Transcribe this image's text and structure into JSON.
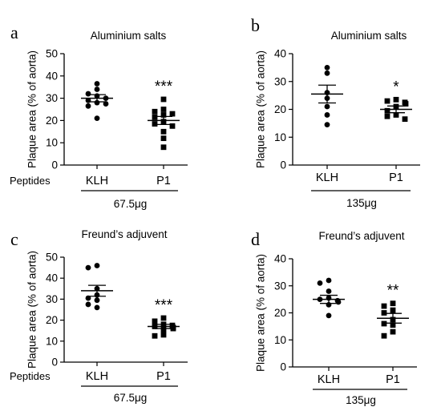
{
  "chart_data": [
    {
      "type": "scatter",
      "panel_label": "a",
      "title": "Aluminium salts",
      "ylabel": "Plaque area (% of aorta)",
      "ylim": [
        0,
        50
      ],
      "yticks": [
        "0",
        "10",
        "20",
        "30",
        "40",
        "50"
      ],
      "categories": [
        "KLH",
        "P1"
      ],
      "row_label": "Peptides",
      "dose": "67.5μg",
      "significance": "***",
      "series": [
        {
          "marker": "circle",
          "mean": 30,
          "sem": 1.6,
          "values": [
            36.5,
            34,
            32,
            31,
            30,
            29,
            28,
            27.5,
            26.5,
            21
          ]
        },
        {
          "marker": "square",
          "mean": 20,
          "sem": 1.8,
          "values": [
            29.5,
            25,
            24,
            23,
            22.5,
            21.5,
            19.5,
            18.5,
            17.5,
            15,
            12,
            8
          ]
        }
      ]
    },
    {
      "type": "scatter",
      "panel_label": "b",
      "title": "Aluminium salts",
      "ylabel": "Plaque area (% of aorta)",
      "ylim": [
        0,
        40
      ],
      "yticks": [
        "0",
        "10",
        "20",
        "30",
        "40"
      ],
      "categories": [
        "KLH",
        "P1"
      ],
      "row_label": "",
      "dose": "135μg",
      "significance": "*",
      "series": [
        {
          "marker": "circle",
          "mean": 25.5,
          "sem": 3.2,
          "values": [
            35,
            33,
            26,
            24,
            21,
            18,
            14.5
          ]
        },
        {
          "marker": "square",
          "mean": 20,
          "sem": 1.2,
          "values": [
            23.5,
            23,
            22.5,
            22,
            21,
            19.5,
            18,
            17.5,
            16.5
          ]
        }
      ]
    },
    {
      "type": "scatter",
      "panel_label": "c",
      "title": "Freund’s adjuvent",
      "ylabel": "Plaque area (% of aorta)",
      "ylim": [
        0,
        50
      ],
      "yticks": [
        "0",
        "10",
        "20",
        "30",
        "40",
        "50"
      ],
      "categories": [
        "KLH",
        "P1"
      ],
      "row_label": "Peptides",
      "dose": "67.5μg",
      "significance": "***",
      "series": [
        {
          "marker": "circle",
          "mean": 34,
          "sem": 2.6,
          "values": [
            46,
            45,
            35,
            32,
            30.5,
            29.5,
            27.5,
            26
          ]
        },
        {
          "marker": "square",
          "mean": 17,
          "sem": 1.0,
          "values": [
            21,
            19.5,
            18,
            17.5,
            17,
            16.5,
            16,
            15.5,
            13,
            12.5
          ]
        }
      ]
    },
    {
      "type": "scatter",
      "panel_label": "d",
      "title": "Freund’s adjuvent",
      "ylabel": "Plaque area (% of aorta)",
      "ylim": [
        0,
        40
      ],
      "yticks": [
        "0",
        "10",
        "20",
        "30",
        "40"
      ],
      "categories": [
        "KLH",
        "P1"
      ],
      "row_label": "",
      "dose": "135μg",
      "significance": "**",
      "series": [
        {
          "marker": "circle",
          "mean": 25,
          "sem": 1.5,
          "values": [
            32,
            31,
            28,
            25.5,
            25,
            24.5,
            24,
            23,
            19
          ]
        },
        {
          "marker": "square",
          "mean": 18,
          "sem": 1.8,
          "values": [
            23.5,
            22.5,
            21,
            20,
            17.5,
            16,
            15.5,
            13,
            11.5
          ]
        }
      ]
    }
  ]
}
